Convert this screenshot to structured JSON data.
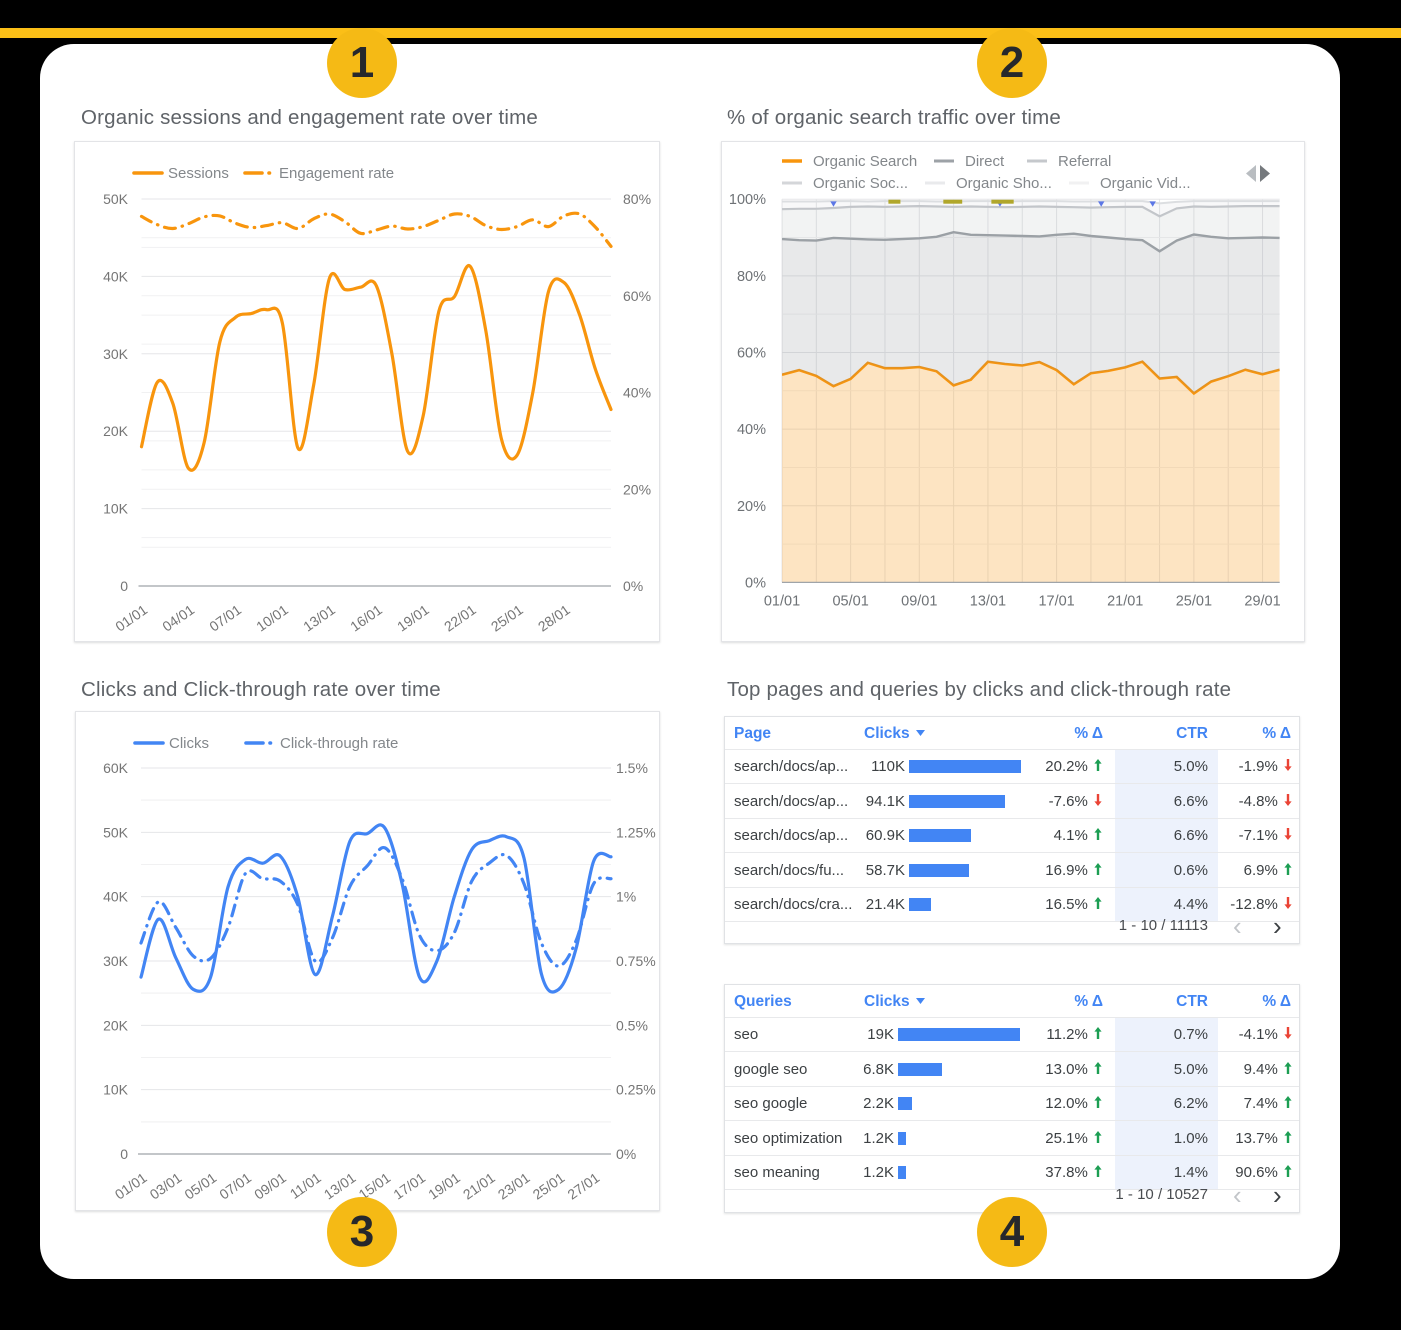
{
  "page": {
    "background": "#000000",
    "accent_yellow": "#fbbf17",
    "card_color": "#ffffff"
  },
  "badges": [
    {
      "label": "1"
    },
    {
      "label": "2"
    },
    {
      "label": "3"
    },
    {
      "label": "4"
    }
  ],
  "sections": [
    {
      "title": "Organic sessions and engagement rate over time"
    },
    {
      "title": "% of organic search traffic over time"
    },
    {
      "title": "Clicks and Click-through rate over time"
    },
    {
      "title": "Top pages and queries by clicks and click-through rate"
    }
  ],
  "chart_data": [
    {
      "type": "line",
      "title": "Organic sessions and engagement rate over time",
      "legend": [
        "Sessions",
        "Engagement rate"
      ],
      "x": [
        "01/01",
        "02/01",
        "03/01",
        "04/01",
        "05/01",
        "06/01",
        "07/01",
        "08/01",
        "09/01",
        "10/01",
        "11/01",
        "12/01",
        "13/01",
        "14/01",
        "15/01",
        "16/01",
        "17/01",
        "18/01",
        "19/01",
        "20/01",
        "21/01",
        "22/01",
        "23/01",
        "24/01",
        "25/01",
        "26/01",
        "27/01",
        "28/01",
        "29/01",
        "30/01",
        "31/01"
      ],
      "x_tick_labels": [
        "01/01",
        "04/01",
        "07/01",
        "10/01",
        "13/01",
        "16/01",
        "19/01",
        "22/01",
        "25/01",
        "28/01"
      ],
      "y_left": {
        "ticks": [
          "0",
          "10K",
          "20K",
          "30K",
          "40K",
          "50K"
        ],
        "min": 0,
        "max": 50000
      },
      "y_right": {
        "ticks": [
          "0%",
          "20%",
          "40%",
          "60%",
          "80%"
        ],
        "min": 0,
        "max": 80
      },
      "series": [
        {
          "name": "Sessions",
          "axis": "left",
          "style": "solid",
          "values": [
            18000,
            26300,
            23600,
            15200,
            18500,
            31500,
            34700,
            35200,
            35700,
            34000,
            17800,
            26000,
            39700,
            38300,
            38600,
            38800,
            30000,
            17400,
            22000,
            35500,
            37400,
            41300,
            33000,
            19000,
            16900,
            25000,
            38000,
            39200,
            35000,
            28000,
            22800
          ]
        },
        {
          "name": "Engagement rate",
          "axis": "right",
          "style": "dashdot",
          "values": [
            76.4,
            74.7,
            73.9,
            74.9,
            76.3,
            76.5,
            75.0,
            74.1,
            74.5,
            75.1,
            73.9,
            75.9,
            76.9,
            75.3,
            72.9,
            73.6,
            74.4,
            73.8,
            74.3,
            75.6,
            76.9,
            76.4,
            74.5,
            73.7,
            74.3,
            75.7,
            74.3,
            76.5,
            76.9,
            74.2,
            70.2
          ]
        }
      ]
    },
    {
      "type": "area",
      "stacked": true,
      "title": "% of organic search traffic over time",
      "legend": [
        "Organic Search",
        "Direct",
        "Referral",
        "Organic Soc...",
        "Organic Sho...",
        "Organic Vid..."
      ],
      "x_tick_labels": [
        "01/01",
        "05/01",
        "09/01",
        "13/01",
        "17/01",
        "21/01",
        "25/01",
        "29/01"
      ],
      "y": {
        "ticks": [
          "0%",
          "20%",
          "40%",
          "60%",
          "80%",
          "100%"
        ],
        "min": 0,
        "max": 100
      },
      "note": "values are cumulative stacked-top percentages read from the chart",
      "series": [
        {
          "name": "Organic Search",
          "cumulative_pct": [
            54.2,
            55.4,
            53.9,
            51.2,
            53.1,
            57.3,
            55.9,
            55.9,
            56.2,
            55.1,
            51.4,
            52.9,
            57.6,
            57.0,
            56.6,
            57.5,
            55.4,
            51.7,
            54.6,
            55.2,
            56.1,
            57.6,
            53.2,
            53.6,
            49.3,
            52.4,
            53.8,
            55.5,
            54.3,
            55.5
          ]
        },
        {
          "name": "Direct",
          "cumulative_pct": [
            89.6,
            89.3,
            89.2,
            89.9,
            89.7,
            89.5,
            89.4,
            89.6,
            89.8,
            90.2,
            91.4,
            90.7,
            90.6,
            90.5,
            90.4,
            90.3,
            90.7,
            91.0,
            90.4,
            90.0,
            89.6,
            89.3,
            86.4,
            89.2,
            90.8,
            90.2,
            89.8,
            89.9,
            90.0,
            89.9
          ]
        },
        {
          "name": "Referral",
          "cumulative_pct": [
            97.4,
            97.5,
            97.5,
            97.7,
            98.0,
            98.1,
            98.0,
            98.1,
            98.2,
            98.1,
            98.0,
            98.1,
            98.0,
            97.9,
            98.0,
            98.1,
            98.0,
            97.9,
            97.8,
            97.9,
            98.0,
            98.0,
            95.5,
            97.6,
            98.1,
            98.0,
            98.1,
            98.2,
            98.2,
            98.2
          ]
        },
        {
          "name": "Organic Social / Shopping / Video",
          "cumulative_pct": [
            99.4,
            99.4,
            99.4,
            99.5,
            99.5,
            99.4,
            99.5,
            99.5,
            99.5,
            99.4,
            99.4,
            99.5,
            99.5,
            99.4,
            99.5,
            99.5,
            99.5,
            99.4,
            99.4,
            99.5,
            99.5,
            99.5,
            98.9,
            99.3,
            99.5,
            99.5,
            99.5,
            99.5,
            99.5,
            99.5
          ]
        }
      ],
      "markers": {
        "blue_days": [
          4,
          13.7,
          19.6,
          22.6
        ],
        "olive_bars_days": [
          [
            7.2,
            7.9
          ],
          [
            10.4,
            11.5
          ],
          [
            13.2,
            14.5
          ]
        ]
      }
    },
    {
      "type": "line",
      "title": "Clicks and Click-through rate over time",
      "legend": [
        "Clicks",
        "Click-through rate"
      ],
      "x_tick_labels": [
        "01/01",
        "03/01",
        "05/01",
        "07/01",
        "09/01",
        "11/01",
        "13/01",
        "15/01",
        "17/01",
        "19/01",
        "21/01",
        "23/01",
        "25/01",
        "27/01"
      ],
      "y_left": {
        "ticks": [
          "0",
          "10K",
          "20K",
          "30K",
          "40K",
          "50K",
          "60K"
        ],
        "min": 0,
        "max": 60000
      },
      "y_right": {
        "ticks": [
          "0%",
          "0.25%",
          "0.5%",
          "0.75%",
          "1%",
          "1.25%",
          "1.5%"
        ],
        "min": 0,
        "max": 1.5
      },
      "series": [
        {
          "name": "Clicks",
          "axis": "left",
          "style": "solid",
          "values": [
            27500,
            36500,
            30500,
            25600,
            27500,
            41500,
            45800,
            45200,
            46300,
            40000,
            27900,
            37000,
            48600,
            49800,
            50700,
            42000,
            27500,
            30000,
            40000,
            47300,
            48700,
            49300,
            46000,
            28000,
            25600,
            32000,
            45500,
            46200
          ]
        },
        {
          "name": "Click-through rate",
          "axis": "right",
          "style": "dashdot",
          "values": [
            0.82,
            0.98,
            0.88,
            0.77,
            0.76,
            0.88,
            1.09,
            1.07,
            1.06,
            0.97,
            0.75,
            0.84,
            1.04,
            1.12,
            1.19,
            1.07,
            0.85,
            0.79,
            0.86,
            1.06,
            1.13,
            1.16,
            1.05,
            0.82,
            0.73,
            0.83,
            1.05,
            1.07
          ]
        }
      ]
    },
    {
      "type": "table",
      "title": "Top pages by clicks and click-through rate",
      "columns": [
        "Page",
        "Clicks",
        "% Δ",
        "CTR",
        "% Δ"
      ],
      "sorted_by": "Clicks",
      "rows": [
        {
          "label": "search/docs/ap...",
          "clicks": "110K",
          "clicks_value": 110000,
          "delta1": "20.2%",
          "dir1": "up",
          "ctr": "5.0%",
          "delta2": "-1.9%",
          "dir2": "down"
        },
        {
          "label": "search/docs/ap...",
          "clicks": "94.1K",
          "clicks_value": 94100,
          "delta1": "-7.6%",
          "dir1": "down",
          "ctr": "6.6%",
          "delta2": "-4.8%",
          "dir2": "down"
        },
        {
          "label": "search/docs/ap...",
          "clicks": "60.9K",
          "clicks_value": 60900,
          "delta1": "4.1%",
          "dir1": "up",
          "ctr": "6.6%",
          "delta2": "-7.1%",
          "dir2": "down"
        },
        {
          "label": "search/docs/fu...",
          "clicks": "58.7K",
          "clicks_value": 58700,
          "delta1": "16.9%",
          "dir1": "up",
          "ctr": "0.6%",
          "delta2": "6.9%",
          "dir2": "up"
        },
        {
          "label": "search/docs/cra...",
          "clicks": "21.4K",
          "clicks_value": 21400,
          "delta1": "16.5%",
          "dir1": "up",
          "ctr": "4.4%",
          "delta2": "-12.8%",
          "dir2": "down"
        }
      ],
      "pagination": "1 - 10 / 11113"
    },
    {
      "type": "table",
      "title": "Top queries by clicks and click-through rate",
      "columns": [
        "Queries",
        "Clicks",
        "% Δ",
        "CTR",
        "% Δ"
      ],
      "sorted_by": "Clicks",
      "rows": [
        {
          "label": "seo",
          "clicks": "19K",
          "clicks_value": 19000,
          "delta1": "11.2%",
          "dir1": "up",
          "ctr": "0.7%",
          "delta2": "-4.1%",
          "dir2": "down"
        },
        {
          "label": "google seo",
          "clicks": "6.8K",
          "clicks_value": 6800,
          "delta1": "13.0%",
          "dir1": "up",
          "ctr": "5.0%",
          "delta2": "9.4%",
          "dir2": "up"
        },
        {
          "label": "seo google",
          "clicks": "2.2K",
          "clicks_value": 2200,
          "delta1": "12.0%",
          "dir1": "up",
          "ctr": "6.2%",
          "delta2": "7.4%",
          "dir2": "up"
        },
        {
          "label": "seo optimization",
          "clicks": "1.2K",
          "clicks_value": 1200,
          "delta1": "25.1%",
          "dir1": "up",
          "ctr": "1.0%",
          "delta2": "13.7%",
          "dir2": "up"
        },
        {
          "label": "seo meaning",
          "clicks": "1.2K",
          "clicks_value": 1200,
          "delta1": "37.8%",
          "dir1": "up",
          "ctr": "1.4%",
          "delta2": "90.6%",
          "dir2": "up"
        }
      ],
      "pagination": "1 - 10 / 10527"
    }
  ],
  "colors": {
    "orange": "#f8950d",
    "orange_fill": "rgba(247,148,12,0.25)",
    "blue": "#4285f4",
    "table_header_blue": "#4285f4",
    "gray_direct": "#9da2a7",
    "gray_direct_fill": "rgba(130,135,140,0.18)",
    "gray_referral": "#c5c8cc",
    "gray_referral_fill": "rgba(130,135,140,0.10)",
    "gray_other": "#dcdee1",
    "gray_other_fill": "rgba(130,135,140,0.055)",
    "green_up": "#1c9e53",
    "red_down": "#ea4335",
    "axis_text": "#757575",
    "legend_text": "#83878b",
    "grid_minor": "#f1f1f2",
    "grid_major": "#e5e6e8",
    "baseline": "#9fa4a9",
    "marker_blue": "#5c77e6",
    "marker_olive": "#b1a72b"
  }
}
